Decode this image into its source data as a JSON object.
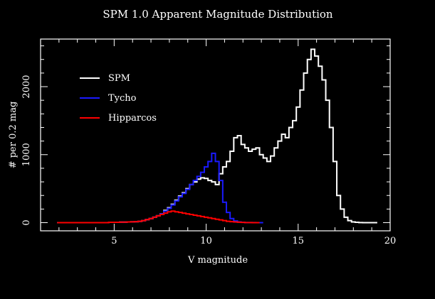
{
  "chart_data": {
    "type": "histogram-step",
    "title": "SPM 1.0 Apparent Magnitude Distribution",
    "xlabel": "V magnitude",
    "ylabel": "# per 0.2 mag",
    "xlim": [
      1,
      20
    ],
    "ylim": [
      -120,
      2700
    ],
    "x_ticks": [
      5,
      10,
      15,
      20
    ],
    "x_tick_labels": [
      "5",
      "10",
      "15",
      "20"
    ],
    "y_ticks": [
      0,
      1000,
      2000
    ],
    "y_tick_labels": [
      "0",
      "1000",
      "2000"
    ],
    "grid": false,
    "legend_position": "top-left",
    "colors": {
      "background": "#000000",
      "axes": "#ffffff",
      "text": "#ffffff"
    },
    "series": [
      {
        "name": "SPM",
        "color": "#ffffff",
        "x": [
          2.0,
          2.2,
          2.4,
          2.6,
          2.8,
          3.0,
          3.2,
          3.4,
          3.6,
          3.8,
          4.0,
          4.2,
          4.4,
          4.6,
          4.8,
          5.0,
          5.2,
          5.4,
          5.6,
          5.8,
          6.0,
          6.2,
          6.4,
          6.6,
          6.8,
          7.0,
          7.2,
          7.4,
          7.6,
          7.8,
          8.0,
          8.2,
          8.4,
          8.6,
          8.8,
          9.0,
          9.2,
          9.4,
          9.6,
          9.8,
          10.0,
          10.2,
          10.4,
          10.6,
          10.8,
          11.0,
          11.2,
          11.4,
          11.6,
          11.8,
          12.0,
          12.2,
          12.4,
          12.6,
          12.8,
          13.0,
          13.2,
          13.4,
          13.6,
          13.8,
          14.0,
          14.2,
          14.4,
          14.6,
          14.8,
          15.0,
          15.2,
          15.4,
          15.6,
          15.8,
          16.0,
          16.2,
          16.4,
          16.6,
          16.8,
          17.0,
          17.2,
          17.4,
          17.6,
          17.8,
          18.0,
          18.2,
          18.4,
          18.6,
          18.8,
          19.0,
          19.2
        ],
        "values": [
          0,
          0,
          0,
          0,
          0,
          0,
          0,
          0,
          0,
          0,
          0,
          0,
          0,
          0,
          5,
          5,
          5,
          8,
          8,
          10,
          12,
          15,
          20,
          30,
          45,
          60,
          80,
          100,
          130,
          180,
          220,
          270,
          330,
          390,
          440,
          500,
          560,
          600,
          640,
          660,
          650,
          620,
          600,
          560,
          720,
          820,
          900,
          1050,
          1250,
          1280,
          1150,
          1100,
          1050,
          1080,
          1100,
          1000,
          950,
          900,
          980,
          1100,
          1200,
          1300,
          1250,
          1400,
          1500,
          1700,
          1950,
          2200,
          2400,
          2550,
          2450,
          2300,
          2100,
          1800,
          1400,
          900,
          400,
          200,
          80,
          30,
          10,
          5,
          2,
          0,
          0,
          0,
          0
        ],
        "note_values": [
          0,
          0,
          0,
          0,
          0,
          0,
          0,
          0,
          0,
          0,
          0,
          0,
          0,
          0,
          5,
          5,
          5,
          8,
          8,
          10,
          12,
          15,
          20,
          30,
          45,
          60,
          80,
          100,
          130,
          180,
          220,
          270,
          330,
          390,
          440,
          500,
          560,
          600,
          640,
          660,
          650,
          620,
          600,
          560,
          720,
          820,
          900,
          1050,
          1250,
          1280,
          1150,
          1100,
          1050,
          1080,
          1100,
          1000,
          950,
          900,
          980,
          1100,
          1200,
          1300,
          1250,
          1400,
          1500,
          1700,
          1950,
          2200,
          2400,
          2550,
          2450,
          2300,
          2100,
          1800,
          1400,
          900,
          400,
          200,
          80,
          30,
          10,
          5,
          2,
          0,
          0,
          0,
          0
        ]
      },
      {
        "name": "Tycho",
        "color": "#1a1aff",
        "x": [
          2.0,
          2.2,
          2.4,
          2.6,
          2.8,
          3.0,
          3.2,
          3.4,
          3.6,
          3.8,
          4.0,
          4.2,
          4.4,
          4.6,
          4.8,
          5.0,
          5.2,
          5.4,
          5.6,
          5.8,
          6.0,
          6.2,
          6.4,
          6.6,
          6.8,
          7.0,
          7.2,
          7.4,
          7.6,
          7.8,
          8.0,
          8.2,
          8.4,
          8.6,
          8.8,
          9.0,
          9.2,
          9.4,
          9.6,
          9.8,
          10.0,
          10.2,
          10.4,
          10.6,
          10.8,
          11.0,
          11.2,
          11.4,
          11.6,
          11.8,
          12.0,
          12.2,
          12.4,
          12.6,
          12.8,
          13.0
        ],
        "values": [
          0,
          0,
          0,
          0,
          0,
          0,
          0,
          0,
          0,
          0,
          0,
          0,
          0,
          0,
          5,
          5,
          5,
          8,
          8,
          10,
          12,
          15,
          20,
          30,
          45,
          60,
          80,
          100,
          130,
          170,
          210,
          260,
          320,
          380,
          430,
          490,
          560,
          620,
          680,
          740,
          820,
          900,
          1020,
          900,
          620,
          300,
          150,
          60,
          25,
          10,
          5,
          2,
          1,
          1,
          0,
          0
        ]
      },
      {
        "name": "Hipparcos",
        "color": "#ff0000",
        "x": [
          2.0,
          2.2,
          2.4,
          2.6,
          2.8,
          3.0,
          3.2,
          3.4,
          3.6,
          3.8,
          4.0,
          4.2,
          4.4,
          4.6,
          4.8,
          5.0,
          5.2,
          5.4,
          5.6,
          5.8,
          6.0,
          6.2,
          6.4,
          6.6,
          6.8,
          7.0,
          7.2,
          7.4,
          7.6,
          7.8,
          8.0,
          8.2,
          8.4,
          8.6,
          8.8,
          9.0,
          9.2,
          9.4,
          9.6,
          9.8,
          10.0,
          10.2,
          10.4,
          10.6,
          10.8,
          11.0,
          11.2,
          11.4,
          11.6,
          11.8,
          12.0,
          12.2,
          12.4,
          12.6,
          12.8
        ],
        "values": [
          0,
          0,
          0,
          0,
          0,
          0,
          0,
          0,
          0,
          0,
          0,
          0,
          0,
          0,
          5,
          5,
          5,
          8,
          8,
          10,
          12,
          15,
          20,
          30,
          45,
          60,
          80,
          100,
          120,
          140,
          160,
          170,
          160,
          150,
          140,
          130,
          120,
          110,
          100,
          90,
          80,
          70,
          60,
          50,
          40,
          30,
          20,
          15,
          10,
          6,
          4,
          2,
          1,
          0,
          0
        ]
      }
    ]
  }
}
